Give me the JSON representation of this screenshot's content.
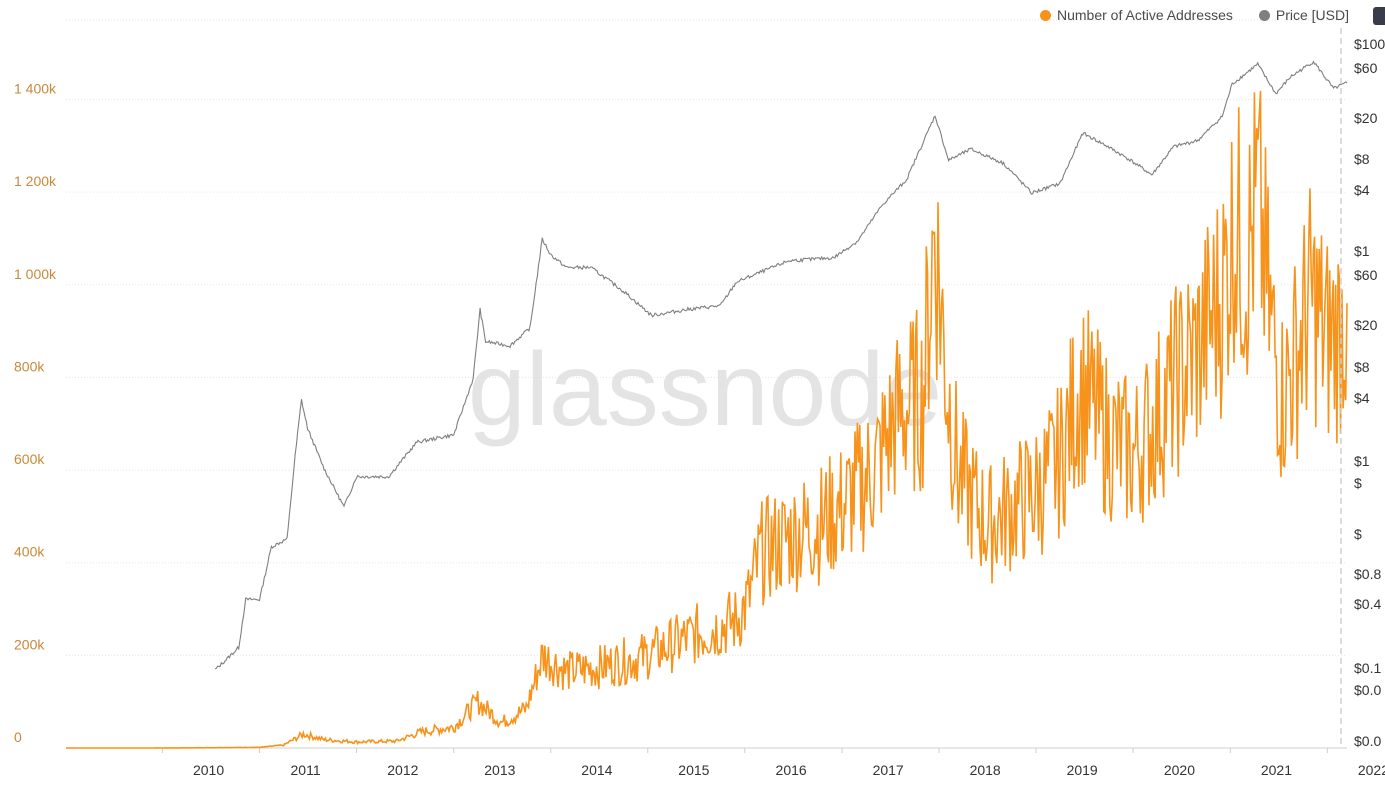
{
  "colors": {
    "active_addresses": "#f7931a",
    "price": "#7f7f7f",
    "left_tick_text": "#c8893a",
    "right_tick_text": "#333333",
    "grid": "#e6e6e6",
    "watermark": "#dcdcdc",
    "badge": "#3b3c4a"
  },
  "legend": [
    {
      "name": "Number of Active Addresses",
      "color": "#f7931a"
    },
    {
      "name": "Price [USD]",
      "color": "#7f7f7f"
    }
  ],
  "watermark": "glassnode",
  "chart_data": {
    "type": "line",
    "x_ticks": [
      "2010",
      "2011",
      "2012",
      "2013",
      "2014",
      "2015",
      "2016",
      "2017",
      "2018",
      "2019",
      "2020",
      "2021",
      "2022"
    ],
    "xlim": [
      "2009-01-03",
      "2022-03-16"
    ],
    "grid": true,
    "legend_position": "top-right",
    "left_axis": {
      "ticks": [
        "0",
        "200k",
        "400k",
        "600k",
        "800k",
        "1 000k",
        "1 200k",
        "1 400k"
      ],
      "ylim": [
        0,
        1550000
      ]
    },
    "right_axis": {
      "scale": "log",
      "ticks": [
        "$0.0",
        "$0.0",
        "$0.1",
        "$0.4",
        "$0.8",
        "$",
        "$",
        "$1",
        "$4",
        "$8",
        "$20",
        "$60",
        "$1",
        "$4",
        "$8",
        "$20",
        "$60",
        "$100"
      ],
      "note_visible_labels_truncated": true
    },
    "series": [
      {
        "name": "Number of Active Addresses",
        "axis": "left",
        "points": [
          [
            "2009-01-03",
            0
          ],
          [
            "2010-01-01",
            100
          ],
          [
            "2010-07-01",
            600
          ],
          [
            "2011-01-01",
            1500
          ],
          [
            "2011-04-01",
            6000
          ],
          [
            "2011-06-15",
            30000
          ],
          [
            "2011-09-01",
            18000
          ],
          [
            "2012-01-01",
            13000
          ],
          [
            "2012-06-01",
            15000
          ],
          [
            "2012-09-01",
            35000
          ],
          [
            "2013-01-01",
            45000
          ],
          [
            "2013-04-01",
            100000
          ],
          [
            "2013-07-01",
            55000
          ],
          [
            "2013-10-01",
            85000
          ],
          [
            "2013-12-01",
            200000
          ],
          [
            "2014-03-01",
            165000
          ],
          [
            "2014-07-01",
            175000
          ],
          [
            "2014-12-01",
            195000
          ],
          [
            "2015-03-01",
            215000
          ],
          [
            "2015-07-01",
            245000
          ],
          [
            "2015-12-01",
            275000
          ],
          [
            "2016-01-15",
            320000
          ],
          [
            "2016-03-01",
            420000
          ],
          [
            "2016-07-01",
            460000
          ],
          [
            "2016-10-01",
            480000
          ],
          [
            "2017-01-01",
            520000
          ],
          [
            "2017-05-01",
            600000
          ],
          [
            "2017-08-01",
            720000
          ],
          [
            "2017-11-01",
            760000
          ],
          [
            "2017-12-15",
            1120000
          ],
          [
            "2018-02-01",
            780000
          ],
          [
            "2018-03-15",
            590000
          ],
          [
            "2018-07-01",
            480000
          ],
          [
            "2018-11-01",
            530000
          ],
          [
            "2019-01-15",
            560000
          ],
          [
            "2019-04-01",
            620000
          ],
          [
            "2019-06-15",
            780000
          ],
          [
            "2019-10-01",
            670000
          ],
          [
            "2020-01-01",
            630000
          ],
          [
            "2020-03-15",
            700000
          ],
          [
            "2020-06-01",
            780000
          ],
          [
            "2020-09-01",
            860000
          ],
          [
            "2020-12-01",
            980000
          ],
          [
            "2021-01-15",
            1130000
          ],
          [
            "2021-03-01",
            1050000
          ],
          [
            "2021-04-15",
            1180000
          ],
          [
            "2021-06-01",
            920000
          ],
          [
            "2021-07-15",
            760000
          ],
          [
            "2021-09-01",
            840000
          ],
          [
            "2021-11-01",
            970000
          ],
          [
            "2022-01-01",
            880000
          ],
          [
            "2022-02-15",
            900000
          ],
          [
            "2022-03-16",
            960000
          ]
        ]
      },
      {
        "name": "Price [USD]",
        "axis": "right",
        "points": [
          [
            "2010-07-18",
            0.06
          ],
          [
            "2010-08-15",
            0.07
          ],
          [
            "2010-10-15",
            0.1
          ],
          [
            "2010-11-10",
            0.3
          ],
          [
            "2011-01-01",
            0.3
          ],
          [
            "2011-02-15",
            1.0
          ],
          [
            "2011-04-15",
            1.2
          ],
          [
            "2011-05-15",
            8.0
          ],
          [
            "2011-06-08",
            29.0
          ],
          [
            "2011-07-01",
            15.0
          ],
          [
            "2011-09-01",
            6.0
          ],
          [
            "2011-11-15",
            2.5
          ],
          [
            "2012-01-01",
            5.0
          ],
          [
            "2012-05-01",
            5.0
          ],
          [
            "2012-08-15",
            11.0
          ],
          [
            "2013-01-01",
            13.0
          ],
          [
            "2013-03-15",
            47.0
          ],
          [
            "2013-04-10",
            230.0
          ],
          [
            "2013-05-01",
            110.0
          ],
          [
            "2013-08-01",
            100.0
          ],
          [
            "2013-10-15",
            150.0
          ],
          [
            "2013-11-30",
            1150.0
          ],
          [
            "2014-01-01",
            800.0
          ],
          [
            "2014-03-01",
            600.0
          ],
          [
            "2014-06-01",
            600.0
          ],
          [
            "2014-10-01",
            350.0
          ],
          [
            "2015-01-15",
            200.0
          ],
          [
            "2015-06-01",
            230.0
          ],
          [
            "2015-10-01",
            250.0
          ],
          [
            "2015-12-01",
            430.0
          ],
          [
            "2016-06-15",
            700.0
          ],
          [
            "2016-12-01",
            750.0
          ],
          [
            "2017-03-01",
            1100.0
          ],
          [
            "2017-06-01",
            2500.0
          ],
          [
            "2017-09-01",
            4500.0
          ],
          [
            "2017-12-17",
            19500.0
          ],
          [
            "2018-02-06",
            7000.0
          ],
          [
            "2018-05-01",
            9000.0
          ],
          [
            "2018-09-01",
            6500.0
          ],
          [
            "2018-12-15",
            3300.0
          ],
          [
            "2019-04-01",
            4100.0
          ],
          [
            "2019-06-26",
            13000.0
          ],
          [
            "2019-09-15",
            10000.0
          ],
          [
            "2019-12-15",
            7200.0
          ],
          [
            "2020-03-12",
            5000.0
          ],
          [
            "2020-06-01",
            9500.0
          ],
          [
            "2020-09-01",
            11000.0
          ],
          [
            "2020-12-01",
            19000.0
          ],
          [
            "2021-01-08",
            40000.0
          ],
          [
            "2021-04-14",
            63000.0
          ],
          [
            "2021-06-21",
            32000.0
          ],
          [
            "2021-08-15",
            47000.0
          ],
          [
            "2021-11-10",
            67000.0
          ],
          [
            "2022-01-24",
            36000.0
          ],
          [
            "2022-03-16",
            41000.0
          ]
        ]
      }
    ]
  }
}
